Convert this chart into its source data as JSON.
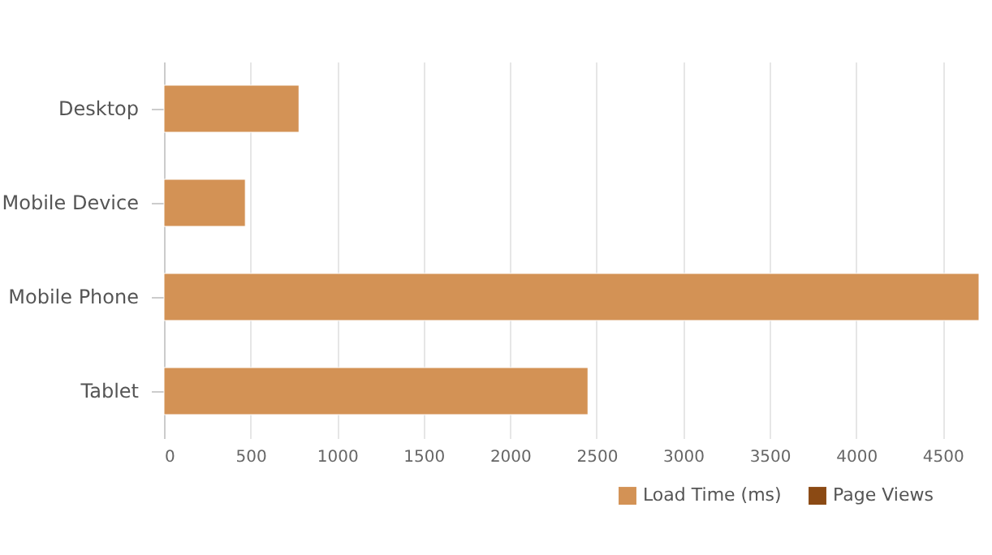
{
  "chart_data": {
    "type": "bar",
    "orientation": "horizontal",
    "categories": [
      "Desktop",
      "Mobile Device",
      "Mobile Phone",
      "Tablet"
    ],
    "series": [
      {
        "name": "Load Time (ms)",
        "color": "#d39255",
        "values": [
          780,
          470,
          4710,
          2450
        ]
      },
      {
        "name": "Page Views",
        "color": "#8b4a14",
        "values": [
          null,
          null,
          null,
          null
        ]
      }
    ],
    "xlim": [
      0,
      4710
    ],
    "xticks": [
      0,
      500,
      1000,
      1500,
      2000,
      2500,
      3000,
      3500,
      4000,
      4500
    ],
    "grid": "x",
    "legend": "bottom right"
  }
}
